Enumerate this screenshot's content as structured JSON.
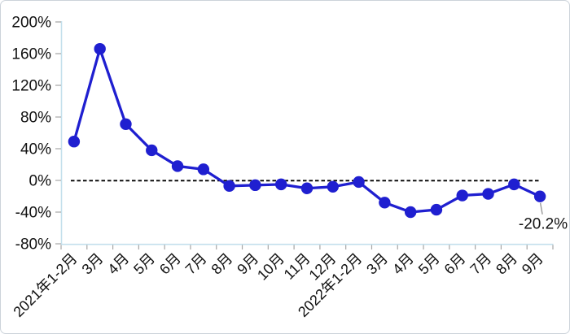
{
  "frame": {
    "background_color": "#ffffff",
    "border_color": "#ccd3da"
  },
  "chart_data": {
    "type": "line",
    "title": "",
    "xlabel": "",
    "ylabel": "",
    "categories": [
      "2021年1-2月",
      "3月",
      "4月",
      "5月",
      "6月",
      "7月",
      "8月",
      "9月",
      "10月",
      "11月",
      "12月",
      "2022年1-2月",
      "3月",
      "4月",
      "5月",
      "6月",
      "7月",
      "8月",
      "9月"
    ],
    "values": [
      49,
      166,
      71,
      38,
      18,
      14,
      -7,
      -6,
      -5,
      -10,
      -8,
      -2,
      -28,
      -40,
      -37,
      -19,
      -17,
      -5,
      -20.2
    ],
    "unit": "%",
    "ylim": [
      -80,
      200
    ],
    "ytick_step": 40,
    "ytick_labels": [
      "200%",
      "160%",
      "120%",
      "80%",
      "40%",
      "0%",
      "-40%",
      "-80%"
    ],
    "zero_line_style": "dashed-black",
    "grid": false,
    "legend": "none",
    "annotation": {
      "text": "-20.2%",
      "point_index": 18
    },
    "colors": {
      "line": "#1f1fd0",
      "marker": "#1f1fd0",
      "axis": "#c3dfec",
      "tick": "#a6a6a6",
      "zero_line": "#000000",
      "text": "#111111",
      "leader_line": "#999999"
    }
  }
}
